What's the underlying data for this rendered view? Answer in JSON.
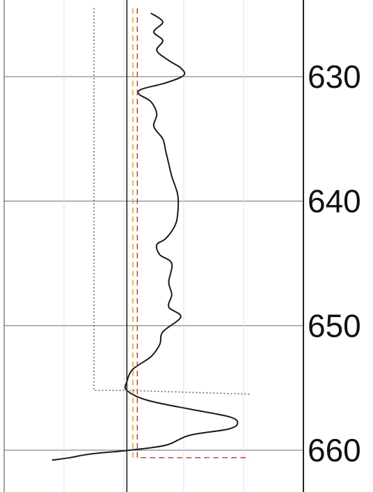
{
  "chart_data": {
    "type": "line",
    "title": "",
    "xlabel": "",
    "ylabel": "",
    "y_axis": {
      "ticks": [
        630,
        640,
        650,
        660
      ],
      "tick_labels": [
        "630",
        "640",
        "650",
        "660"
      ],
      "range": [
        624.5,
        660.8
      ],
      "inverted": true
    },
    "x_axis": {
      "range": [
        0,
        100
      ],
      "ticks_shown": false
    },
    "grid": true,
    "series": [
      {
        "style": "solid",
        "color": "#1a1a1a",
        "points": [
          [
            49,
            624.9
          ],
          [
            53,
            625.6
          ],
          [
            50,
            626.4
          ],
          [
            53,
            627.1
          ],
          [
            51,
            627.9
          ],
          [
            55,
            628.7
          ],
          [
            59,
            629.3
          ],
          [
            60,
            629.9
          ],
          [
            54,
            630.5
          ],
          [
            46,
            631.0
          ],
          [
            45,
            631.4
          ],
          [
            49,
            632.0
          ],
          [
            51,
            633.0
          ],
          [
            50,
            634.0
          ],
          [
            53,
            635.0
          ],
          [
            54,
            636.0
          ],
          [
            55,
            637.0
          ],
          [
            56,
            638.0
          ],
          [
            58,
            639.5
          ],
          [
            58,
            641.0
          ],
          [
            57,
            642.0
          ],
          [
            54,
            643.0
          ],
          [
            51,
            643.5
          ],
          [
            52,
            644.3
          ],
          [
            56,
            645.0
          ],
          [
            55,
            646.5
          ],
          [
            56,
            647.5
          ],
          [
            55,
            648.5
          ],
          [
            59,
            649.3
          ],
          [
            53,
            650.5
          ],
          [
            52,
            651.5
          ],
          [
            49,
            652.5
          ],
          [
            43,
            653.5
          ],
          [
            41,
            654.5
          ],
          [
            41,
            655.2
          ],
          [
            48,
            656.0
          ],
          [
            62,
            656.7
          ],
          [
            75,
            657.3
          ],
          [
            78,
            657.8
          ],
          [
            75,
            658.3
          ],
          [
            62,
            658.8
          ],
          [
            54,
            659.6
          ],
          [
            42,
            660.0
          ],
          [
            29,
            660.3
          ],
          [
            22,
            660.6
          ],
          [
            16,
            660.8
          ]
        ]
      },
      {
        "style": "dotted",
        "color": "#555555",
        "points": [
          [
            30,
            624.5
          ],
          [
            30,
            655.2
          ],
          [
            41,
            655.2
          ],
          [
            82,
            655.5
          ]
        ]
      },
      {
        "style": "dashed",
        "color": "#c9a21a",
        "points": [
          [
            43,
            624.5
          ],
          [
            43,
            660.8
          ]
        ]
      },
      {
        "style": "dashed",
        "color": "#c0392b",
        "points": [
          [
            44.5,
            624.5
          ],
          [
            44.5,
            660.5
          ],
          [
            44.5,
            660.6
          ],
          [
            82,
            660.6
          ]
        ]
      }
    ],
    "reference_line_x": 41
  }
}
